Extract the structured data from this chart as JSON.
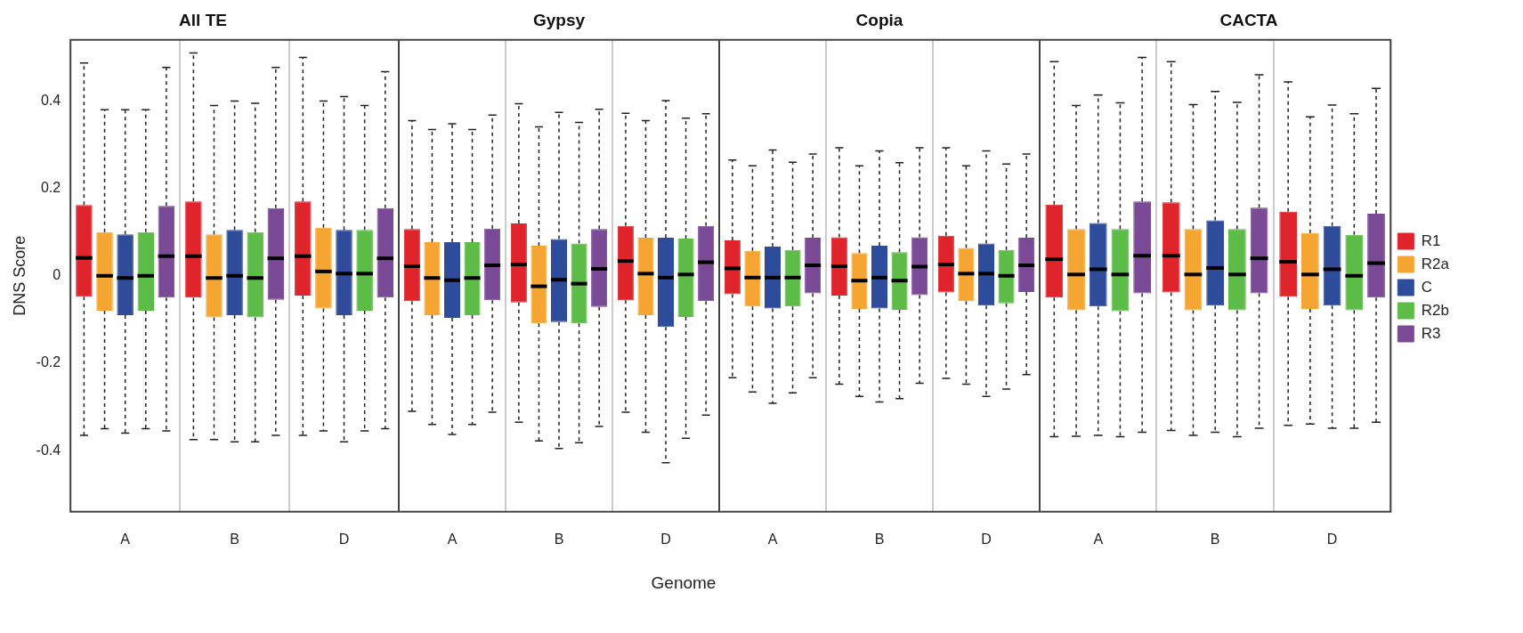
{
  "chart_data": [
    {
      "type": "box",
      "title": "All TE",
      "categories": [
        "A",
        "B",
        "D"
      ],
      "ylabel": "DNS Score",
      "ylim": [
        -0.54,
        0.54
      ],
      "yticks": [
        -0.4,
        -0.2,
        0,
        0.2,
        0.4
      ],
      "grid": "x",
      "series": [
        {
          "color": "#e0242b",
          "boxes": [
            {
              "low": -0.365,
              "q1": -0.048,
              "median": 0.041,
              "q3": 0.162,
              "high": 0.487
            },
            {
              "low": -0.375,
              "q1": -0.05,
              "median": 0.045,
              "q3": 0.17,
              "high": 0.51
            },
            {
              "low": -0.365,
              "q1": -0.045,
              "median": 0.045,
              "q3": 0.17,
              "high": 0.5
            }
          ]
        },
        {
          "color": "#f5a531",
          "boxes": [
            {
              "low": -0.35,
              "q1": -0.08,
              "median": 0.0,
              "q3": 0.1,
              "high": 0.38
            },
            {
              "low": -0.375,
              "q1": -0.095,
              "median": -0.005,
              "q3": 0.095,
              "high": 0.39
            },
            {
              "low": -0.355,
              "q1": -0.075,
              "median": 0.01,
              "q3": 0.11,
              "high": 0.4
            }
          ]
        },
        {
          "color": "#2f4c9a",
          "boxes": [
            {
              "low": -0.36,
              "q1": -0.09,
              "median": -0.005,
              "q3": 0.095,
              "high": 0.38
            },
            {
              "low": -0.38,
              "q1": -0.09,
              "median": 0.0,
              "q3": 0.105,
              "high": 0.4
            },
            {
              "low": -0.38,
              "q1": -0.09,
              "median": 0.005,
              "q3": 0.105,
              "high": 0.41
            }
          ]
        },
        {
          "color": "#5dbb47",
          "boxes": [
            {
              "low": -0.35,
              "q1": -0.08,
              "median": 0.0,
              "q3": 0.1,
              "high": 0.38
            },
            {
              "low": -0.38,
              "q1": -0.095,
              "median": -0.005,
              "q3": 0.1,
              "high": 0.395
            },
            {
              "low": -0.355,
              "q1": -0.08,
              "median": 0.005,
              "q3": 0.105,
              "high": 0.39
            }
          ]
        },
        {
          "color": "#7a4a96",
          "boxes": [
            {
              "low": -0.355,
              "q1": -0.05,
              "median": 0.045,
              "q3": 0.16,
              "high": 0.477
            },
            {
              "low": -0.365,
              "q1": -0.055,
              "median": 0.04,
              "q3": 0.155,
              "high": 0.477
            },
            {
              "low": -0.35,
              "q1": -0.05,
              "median": 0.04,
              "q3": 0.155,
              "high": 0.467
            }
          ]
        }
      ]
    },
    {
      "type": "box",
      "title": "Gypsy",
      "categories": [
        "A",
        "B",
        "D"
      ],
      "xlabel": "Genome",
      "ylim": [
        -0.54,
        0.54
      ],
      "yticks": [
        -0.4,
        -0.2,
        0,
        0.2,
        0.4
      ],
      "tick_labels": "x",
      "grid": "x",
      "series": [
        {
          "color": "#e0242b",
          "boxes": [
            {
              "low": -0.31,
              "q1": -0.058,
              "median": 0.022,
              "q3": 0.107,
              "high": 0.355
            },
            {
              "low": -0.335,
              "q1": -0.061,
              "median": 0.026,
              "q3": 0.12,
              "high": 0.394
            },
            {
              "low": -0.312,
              "q1": -0.056,
              "median": 0.034,
              "q3": 0.114,
              "high": 0.372
            }
          ]
        },
        {
          "color": "#f5a531",
          "boxes": [
            {
              "low": -0.34,
              "q1": -0.09,
              "median": -0.005,
              "q3": 0.077,
              "high": 0.335
            },
            {
              "low": -0.378,
              "q1": -0.109,
              "median": -0.024,
              "q3": 0.069,
              "high": 0.341
            },
            {
              "low": -0.358,
              "q1": -0.09,
              "median": 0.005,
              "q3": 0.087,
              "high": 0.355
            }
          ]
        },
        {
          "color": "#2f4c9a",
          "boxes": [
            {
              "low": -0.363,
              "q1": -0.096,
              "median": -0.01,
              "q3": 0.077,
              "high": 0.348
            },
            {
              "low": -0.395,
              "q1": -0.106,
              "median": -0.009,
              "q3": 0.084,
              "high": 0.374
            },
            {
              "low": -0.428,
              "q1": -0.117,
              "median": -0.004,
              "q3": 0.087,
              "high": 0.401
            }
          ]
        },
        {
          "color": "#5dbb47",
          "boxes": [
            {
              "low": -0.34,
              "q1": -0.09,
              "median": -0.005,
              "q3": 0.077,
              "high": 0.335
            },
            {
              "low": -0.382,
              "q1": -0.109,
              "median": -0.018,
              "q3": 0.074,
              "high": 0.351
            },
            {
              "low": -0.372,
              "q1": -0.094,
              "median": 0.003,
              "q3": 0.085,
              "high": 0.361
            }
          ]
        },
        {
          "color": "#7a4a96",
          "boxes": [
            {
              "low": -0.312,
              "q1": -0.056,
              "median": 0.024,
              "q3": 0.108,
              "high": 0.368
            },
            {
              "low": -0.345,
              "q1": -0.071,
              "median": 0.016,
              "q3": 0.107,
              "high": 0.381
            },
            {
              "low": -0.319,
              "q1": -0.058,
              "median": 0.031,
              "q3": 0.114,
              "high": 0.371
            }
          ]
        }
      ]
    },
    {
      "type": "box",
      "title": "Copia",
      "categories": [
        "A",
        "B",
        "D"
      ],
      "ylim": [
        -0.54,
        0.54
      ],
      "yticks": [
        -0.4,
        -0.2,
        0,
        0.2,
        0.4
      ],
      "tick_labels": "x",
      "grid": "x",
      "series": [
        {
          "color": "#e0242b",
          "boxes": [
            {
              "low": -0.233,
              "q1": -0.042,
              "median": 0.017,
              "q3": 0.081,
              "high": 0.265
            },
            {
              "low": -0.248,
              "q1": -0.045,
              "median": 0.022,
              "q3": 0.088,
              "high": 0.293
            },
            {
              "low": -0.235,
              "q1": -0.038,
              "median": 0.026,
              "q3": 0.092,
              "high": 0.293
            }
          ]
        },
        {
          "color": "#f5a531",
          "boxes": [
            {
              "low": -0.266,
              "q1": -0.07,
              "median": -0.004,
              "q3": 0.057,
              "high": 0.252
            },
            {
              "low": -0.276,
              "q1": -0.076,
              "median": -0.011,
              "q3": 0.052,
              "high": 0.252
            },
            {
              "low": -0.248,
              "q1": -0.058,
              "median": 0.005,
              "q3": 0.064,
              "high": 0.252
            }
          ]
        },
        {
          "color": "#2f4c9a",
          "boxes": [
            {
              "low": -0.292,
              "q1": -0.075,
              "median": -0.004,
              "q3": 0.067,
              "high": 0.288
            },
            {
              "low": -0.289,
              "q1": -0.075,
              "median": -0.004,
              "q3": 0.069,
              "high": 0.286
            },
            {
              "low": -0.276,
              "q1": -0.068,
              "median": 0.005,
              "q3": 0.074,
              "high": 0.286
            }
          ]
        },
        {
          "color": "#5dbb47",
          "boxes": [
            {
              "low": -0.268,
              "q1": -0.07,
              "median": -0.004,
              "q3": 0.059,
              "high": 0.26
            },
            {
              "low": -0.281,
              "q1": -0.078,
              "median": -0.011,
              "q3": 0.054,
              "high": 0.259
            },
            {
              "low": -0.259,
              "q1": -0.063,
              "median": 0.0,
              "q3": 0.059,
              "high": 0.256
            }
          ]
        },
        {
          "color": "#7a4a96",
          "boxes": [
            {
              "low": -0.233,
              "q1": -0.04,
              "median": 0.024,
              "q3": 0.087,
              "high": 0.279
            },
            {
              "low": -0.246,
              "q1": -0.044,
              "median": 0.021,
              "q3": 0.088,
              "high": 0.293
            },
            {
              "low": -0.226,
              "q1": -0.037,
              "median": 0.024,
              "q3": 0.087,
              "high": 0.279
            }
          ]
        }
      ]
    },
    {
      "type": "box",
      "title": "CACTA",
      "categories": [
        "A",
        "B",
        "D"
      ],
      "ylim": [
        -0.54,
        0.54
      ],
      "yticks": [
        -0.4,
        -0.2,
        0,
        0.2,
        0.4
      ],
      "tick_labels": "x",
      "grid": "x",
      "legend": "right",
      "series": [
        {
          "name": "R1",
          "color": "#e0242b",
          "boxes": [
            {
              "low": -0.368,
              "q1": -0.05,
              "median": 0.038,
              "q3": 0.163,
              "high": 0.49
            },
            {
              "low": -0.354,
              "q1": -0.038,
              "median": 0.046,
              "q3": 0.168,
              "high": 0.49
            },
            {
              "low": -0.342,
              "q1": -0.048,
              "median": 0.032,
              "q3": 0.147,
              "high": 0.444
            }
          ]
        },
        {
          "name": "R2a",
          "color": "#f5a531",
          "boxes": [
            {
              "low": -0.367,
              "q1": -0.079,
              "median": 0.003,
              "q3": 0.107,
              "high": 0.39
            },
            {
              "low": -0.365,
              "q1": -0.079,
              "median": 0.003,
              "q3": 0.107,
              "high": 0.392
            },
            {
              "low": -0.339,
              "q1": -0.076,
              "median": 0.003,
              "q3": 0.098,
              "high": 0.364
            }
          ]
        },
        {
          "name": "C",
          "color": "#2f4c9a",
          "boxes": [
            {
              "low": -0.365,
              "q1": -0.07,
              "median": 0.015,
              "q3": 0.121,
              "high": 0.414
            },
            {
              "low": -0.358,
              "q1": -0.068,
              "median": 0.018,
              "q3": 0.127,
              "high": 0.422
            },
            {
              "low": -0.349,
              "q1": -0.068,
              "median": 0.015,
              "q3": 0.114,
              "high": 0.391
            }
          ]
        },
        {
          "name": "R2b",
          "color": "#5dbb47",
          "boxes": [
            {
              "low": -0.368,
              "q1": -0.081,
              "median": 0.003,
              "q3": 0.107,
              "high": 0.396
            },
            {
              "low": -0.368,
              "q1": -0.079,
              "median": 0.003,
              "q3": 0.107,
              "high": 0.397
            },
            {
              "low": -0.349,
              "q1": -0.079,
              "median": 0.0,
              "q3": 0.094,
              "high": 0.371
            }
          ]
        },
        {
          "name": "R3",
          "color": "#7a4a96",
          "boxes": [
            {
              "low": -0.358,
              "q1": -0.04,
              "median": 0.046,
              "q3": 0.17,
              "high": 0.5
            },
            {
              "low": -0.349,
              "q1": -0.04,
              "median": 0.04,
              "q3": 0.156,
              "high": 0.46
            },
            {
              "low": -0.335,
              "q1": -0.05,
              "median": 0.029,
              "q3": 0.142,
              "high": 0.429
            }
          ]
        }
      ]
    }
  ]
}
